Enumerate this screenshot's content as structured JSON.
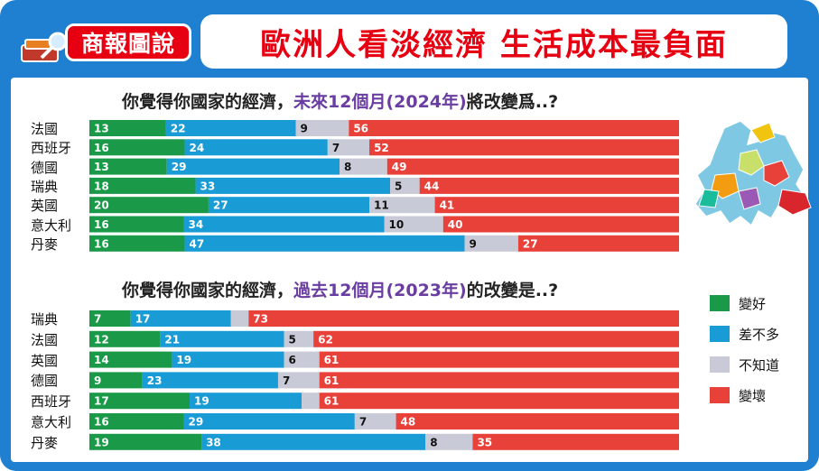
{
  "header": {
    "badge": "商報圖說",
    "headline": "歐洲人看淡經濟 生活成本最負面"
  },
  "colors": {
    "better": "#1a9a48",
    "same": "#199bd6",
    "unknown": "#c8cad7",
    "worse": "#e8413a",
    "title_accent": "#6a3ea0"
  },
  "legend": [
    {
      "label": "變好",
      "color": "#1a9a48"
    },
    {
      "label": "差不多",
      "color": "#199bd6"
    },
    {
      "label": "不知道",
      "color": "#c8cad7"
    },
    {
      "label": "變壞",
      "color": "#e8413a"
    }
  ],
  "chart_data": [
    {
      "type": "bar",
      "stacked": true,
      "orientation": "horizontal",
      "title_prefix": "你覺得你國家的經濟，",
      "title_highlight": "未來12個月(2024年)",
      "title_suffix": "將改變爲..?",
      "categories": [
        "法國",
        "西班牙",
        "德國",
        "瑞典",
        "英國",
        "意大利",
        "丹麥"
      ],
      "series": [
        {
          "name": "變好",
          "values": [
            13,
            16,
            13,
            18,
            20,
            16,
            16
          ]
        },
        {
          "name": "差不多",
          "values": [
            22,
            24,
            29,
            33,
            27,
            34,
            47
          ]
        },
        {
          "name": "不知道",
          "values": [
            9,
            7,
            8,
            5,
            11,
            10,
            9
          ]
        },
        {
          "name": "變壞",
          "values": [
            56,
            52,
            49,
            44,
            41,
            40,
            27
          ]
        }
      ]
    },
    {
      "type": "bar",
      "stacked": true,
      "orientation": "horizontal",
      "title_prefix": "你覺得你國家的經濟，",
      "title_highlight": "過去12個月(2023年)",
      "title_suffix": "的改變是..?",
      "categories": [
        "瑞典",
        "法國",
        "英國",
        "德國",
        "西班牙",
        "意大利",
        "丹麥"
      ],
      "series": [
        {
          "name": "變好",
          "values": [
            7,
            12,
            14,
            9,
            17,
            16,
            19
          ]
        },
        {
          "name": "差不多",
          "values": [
            17,
            21,
            19,
            23,
            19,
            29,
            38
          ]
        },
        {
          "name": "不知道",
          "values": [
            "",
            5,
            6,
            7,
            "",
            7,
            8
          ]
        },
        {
          "name": "變壞",
          "values": [
            73,
            62,
            61,
            61,
            61,
            48,
            35
          ]
        }
      ]
    }
  ]
}
